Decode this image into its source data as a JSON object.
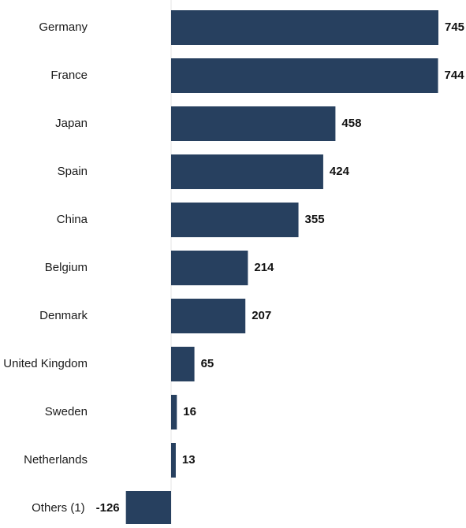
{
  "chart_data": {
    "type": "bar",
    "orientation": "horizontal",
    "categories": [
      "Germany",
      "France",
      "Japan",
      "Spain",
      "China",
      "Belgium",
      "Denmark",
      "United Kingdom",
      "Sweden",
      "Netherlands",
      "Others (1)"
    ],
    "values": [
      745,
      744,
      458,
      424,
      355,
      214,
      207,
      65,
      16,
      13,
      -126
    ],
    "value_labels": [
      "745",
      "744",
      "458",
      "424",
      "355",
      "214",
      "207",
      "65",
      "16",
      "13",
      "-126"
    ],
    "title": "",
    "xlabel": "",
    "ylabel": "",
    "xlim": [
      -126,
      745
    ],
    "grid": false,
    "colors": {
      "bar": "#27405f",
      "zero_line": "#e6e6e6"
    }
  }
}
